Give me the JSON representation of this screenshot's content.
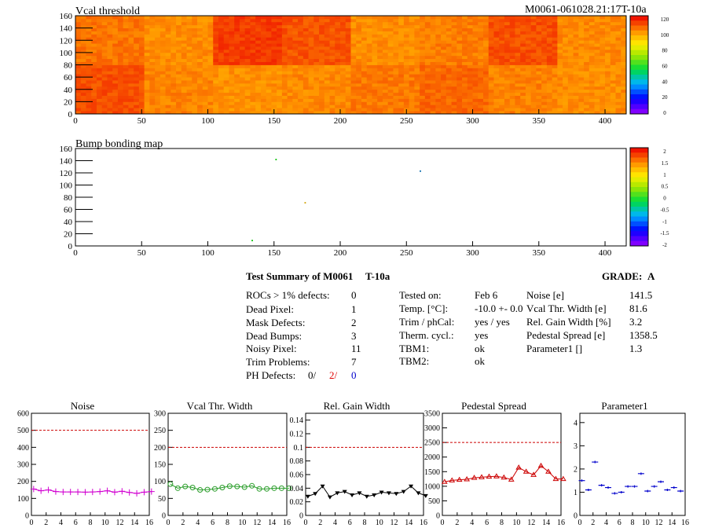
{
  "header": {
    "module_id": "M0061-061028.21:17T-10a"
  },
  "maps": {
    "vcal": {
      "title": "Vcal threshold",
      "xticks": [
        "0",
        "50",
        "100",
        "150",
        "200",
        "250",
        "300",
        "350",
        "400"
      ],
      "yticks": [
        "0",
        "20",
        "40",
        "60",
        "80",
        "100",
        "120",
        "140",
        "160"
      ],
      "palette_labels": [
        "120",
        "100",
        "80",
        "60",
        "40",
        "20",
        "0"
      ]
    },
    "bump": {
      "title": "Bump bonding map",
      "xticks": [
        "0",
        "50",
        "100",
        "150",
        "200",
        "250",
        "300",
        "350",
        "400"
      ],
      "yticks": [
        "0",
        "20",
        "40",
        "60",
        "80",
        "100",
        "120",
        "140",
        "160"
      ],
      "palette_labels": [
        "2",
        "1.5",
        "1",
        "0.5",
        "0",
        "-0.5",
        "-1",
        "-1.5",
        "-2"
      ]
    }
  },
  "summary": {
    "title": "Test Summary of M0061",
    "tag": "T-10a",
    "grade_label": "GRADE:",
    "grade": "A",
    "defects": [
      {
        "label": "ROCs > 1% defects:",
        "value": "0"
      },
      {
        "label": "Dead Pixel:",
        "value": "1"
      },
      {
        "label": "Mask Defects:",
        "value": "2"
      },
      {
        "label": "Dead Bumps:",
        "value": "3"
      },
      {
        "label": "Noisy Pixel:",
        "value": "11"
      },
      {
        "label": "Trim Problems:",
        "value": "7"
      }
    ],
    "ph": {
      "label": "PH Defects:",
      "v1": "0/",
      "v2": "2/",
      "v3": "0"
    },
    "tests": [
      {
        "label": "Tested on:",
        "value": "Feb 6"
      },
      {
        "label": "Temp. [°C]:",
        "value": "-10.0 +- 0.0"
      },
      {
        "label": "Trim / phCal:",
        "value": "yes / yes"
      },
      {
        "label": "Therm. cycl.:",
        "value": "yes"
      },
      {
        "label": "TBM1:",
        "value": "ok"
      },
      {
        "label": "TBM2:",
        "value": "ok"
      }
    ],
    "params": [
      {
        "label": "Noise [e]",
        "value": "141.5"
      },
      {
        "label": "Vcal Thr. Width [e]",
        "value": "81.6"
      },
      {
        "label": "Rel. Gain Width [%]",
        "value": "3.2"
      },
      {
        "label": "Pedestal Spread [e]",
        "value": "1358.5"
      },
      {
        "label": "Parameter1 []",
        "value": "1.3"
      }
    ]
  },
  "chart_data": [
    {
      "type": "heatmap",
      "title": "Vcal threshold",
      "xlim": [
        0,
        416
      ],
      "ylim": [
        0,
        160
      ],
      "x_ticks": [
        0,
        50,
        100,
        150,
        200,
        250,
        300,
        350,
        400
      ],
      "y_ticks": [
        0,
        20,
        40,
        60,
        80,
        100,
        120,
        140,
        160
      ],
      "z_range": [
        0,
        125
      ],
      "roc_mean_levels_top": [
        0.62,
        0.5,
        0.9,
        0.78,
        0.5,
        0.58,
        0.8,
        0.52
      ],
      "roc_mean_levels_bottom": [
        0.8,
        0.55,
        0.48,
        0.52,
        0.6,
        0.68,
        0.56,
        0.5
      ]
    },
    {
      "type": "heatmap",
      "title": "Bump bonding map",
      "xlim": [
        0,
        416
      ],
      "ylim": [
        0,
        160
      ],
      "x_ticks": [
        0,
        50,
        100,
        150,
        200,
        250,
        300,
        350,
        400
      ],
      "y_ticks": [
        0,
        20,
        40,
        60,
        80,
        100,
        120,
        140,
        160
      ],
      "z_range": [
        -2,
        2
      ],
      "points": [
        [
          151,
          143
        ],
        [
          260,
          124
        ],
        [
          173,
          72
        ],
        [
          133,
          10
        ]
      ]
    },
    {
      "type": "line",
      "title": "Noise",
      "color": "#d100d1",
      "marker": "cross",
      "x": [
        0,
        1,
        2,
        3,
        4,
        5,
        6,
        7,
        8,
        9,
        10,
        11,
        12,
        13,
        14,
        15,
        16
      ],
      "values": [
        155,
        145,
        150,
        140,
        138,
        138,
        138,
        137,
        138,
        140,
        145,
        137,
        142,
        135,
        130,
        137,
        140
      ],
      "ylim": [
        0,
        600
      ],
      "yticks": [
        0,
        100,
        200,
        300,
        400,
        500,
        600
      ],
      "xticks": [
        0,
        2,
        4,
        6,
        8,
        10,
        12,
        14,
        16
      ],
      "reference": 500
    },
    {
      "type": "line",
      "title": "Vcal Thr. Width",
      "color": "#2a9d2a",
      "marker": "circle",
      "x": [
        0,
        1,
        2,
        3,
        4,
        5,
        6,
        7,
        8,
        9,
        10,
        11,
        12,
        13,
        14,
        15,
        16
      ],
      "values": [
        92,
        80,
        85,
        82,
        75,
        76,
        78,
        82,
        86,
        85,
        83,
        87,
        78,
        78,
        80,
        80,
        80
      ],
      "ylim": [
        0,
        300
      ],
      "yticks": [
        0,
        50,
        100,
        150,
        200,
        250,
        300
      ],
      "xticks": [
        0,
        2,
        4,
        6,
        8,
        10,
        12,
        14,
        16
      ],
      "reference": 200
    },
    {
      "type": "line",
      "title": "Rel. Gain Width",
      "color": "#000000",
      "marker": "triangle-down",
      "x": [
        0,
        1,
        2,
        3,
        4,
        5,
        6,
        7,
        8,
        9,
        10,
        11,
        12,
        13,
        14,
        15,
        16
      ],
      "values": [
        0.028,
        0.032,
        0.043,
        0.027,
        0.033,
        0.035,
        0.03,
        0.033,
        0.028,
        0.03,
        0.034,
        0.033,
        0.032,
        0.035,
        0.043,
        0.033,
        0.029
      ],
      "ylim": [
        0,
        0.15
      ],
      "yticks": [
        0,
        0.02,
        0.04,
        0.06,
        0.08,
        0.1,
        0.12,
        0.14
      ],
      "xticks": [
        0,
        2,
        4,
        6,
        8,
        10,
        12,
        14,
        16
      ],
      "reference": 0.1
    },
    {
      "type": "line",
      "title": "Pedestal Spread",
      "color": "#cc0000",
      "marker": "triangle-up",
      "x": [
        0,
        1,
        2,
        3,
        4,
        5,
        6,
        7,
        8,
        9,
        10,
        11,
        12,
        13,
        14,
        15,
        16
      ],
      "values": [
        1150,
        1200,
        1220,
        1240,
        1290,
        1310,
        1330,
        1340,
        1300,
        1230,
        1640,
        1500,
        1390,
        1700,
        1500,
        1250,
        1250
      ],
      "ylim": [
        0,
        3500
      ],
      "yticks": [
        0,
        500,
        1000,
        1500,
        2000,
        2500,
        3000,
        3500
      ],
      "xticks": [
        0,
        2,
        4,
        6,
        8,
        10,
        12,
        14,
        16
      ],
      "reference": 2500
    },
    {
      "type": "scatter",
      "title": "Parameter1",
      "color": "#0000cc",
      "marker": "dash",
      "x": [
        0,
        1,
        2,
        3,
        4,
        5,
        6,
        7,
        8,
        9,
        10,
        11,
        12,
        13,
        14,
        15
      ],
      "values": [
        1.5,
        1.1,
        2.3,
        1.3,
        1.2,
        0.95,
        1.0,
        1.25,
        1.25,
        1.8,
        1.05,
        1.25,
        1.45,
        1.1,
        1.2,
        1.05
      ],
      "ylim": [
        0,
        4.4
      ],
      "yticks": [
        0,
        1,
        2,
        3,
        4
      ],
      "xticks": [
        0,
        2,
        4,
        6,
        8,
        10,
        12,
        14,
        16
      ]
    }
  ]
}
